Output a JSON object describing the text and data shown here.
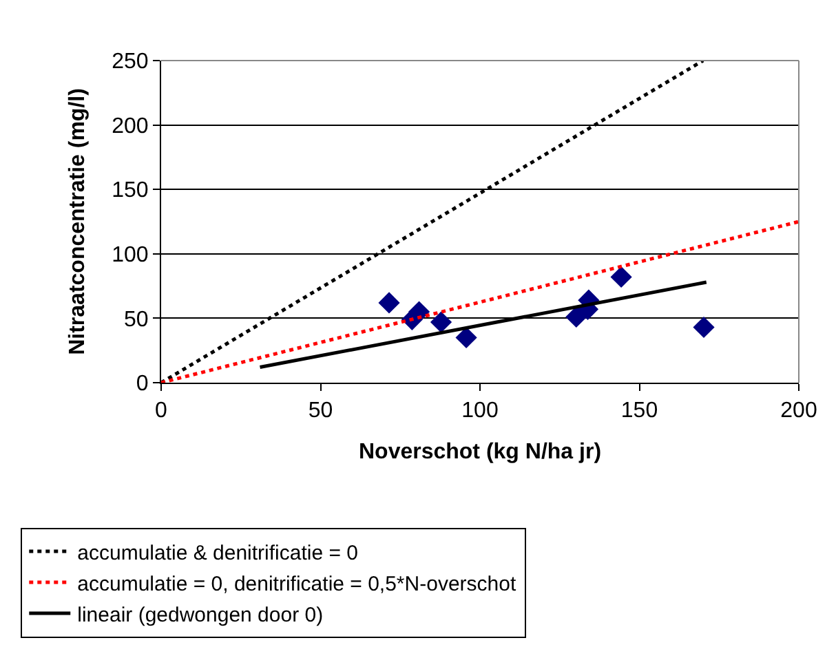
{
  "chart_data": {
    "type": "scatter",
    "xlabel": "Noverschot (kg N/ha jr)",
    "ylabel": "Nitraatconcentratie (mg/l)",
    "xlim": [
      0,
      200
    ],
    "xticks": [
      0,
      50,
      100,
      150,
      200
    ],
    "ylim": [
      0,
      250
    ],
    "yticks": [
      0,
      50,
      100,
      150,
      200,
      250
    ],
    "grid": "y",
    "legend": "bottom",
    "series": [
      {
        "color": "#000080",
        "marker": "diamond",
        "x": [
          71.5,
          78.7,
          80.9,
          87.8,
          95.7,
          130.2,
          133.8,
          134.1,
          144.3,
          170.2
        ],
        "values": [
          62,
          49,
          55,
          47,
          35,
          51,
          57,
          64,
          82,
          43
        ]
      },
      {
        "type": "line",
        "name": "accumulatie & denitrificatie = 0",
        "color": "#000000",
        "line_style": "dotted",
        "marker": "none",
        "x": [
          0,
          170
        ],
        "values": [
          0,
          250
        ]
      },
      {
        "type": "line",
        "name": "accumulatie = 0, denitrificatie = 0,5*N-overschot",
        "color": "#ff0000",
        "line_style": "dotted",
        "marker": "none",
        "x": [
          0,
          200
        ],
        "values": [
          0,
          125
        ]
      },
      {
        "type": "line",
        "name": "lineair (gedwongen door 0)",
        "color": "#000000",
        "line_style": "solid",
        "marker": "none",
        "x": [
          31,
          171
        ],
        "values": [
          12,
          78
        ]
      }
    ]
  }
}
